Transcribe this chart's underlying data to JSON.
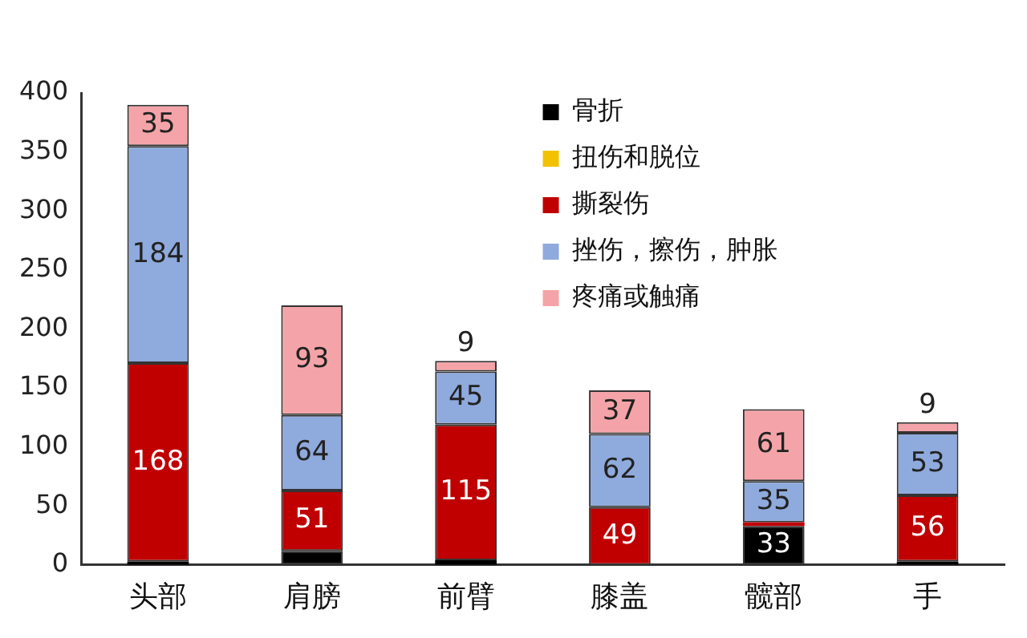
{
  "chart_data": {
    "type": "bar",
    "stacked": true,
    "categories": [
      "头部",
      "肩膀",
      "前臂",
      "膝盖",
      "髋部",
      "手"
    ],
    "series": [
      {
        "name": "骨折",
        "color": "#000000",
        "values": [
          3,
          12,
          4,
          null,
          33,
          3
        ],
        "value_labels": [
          null,
          null,
          null,
          null,
          "33",
          null
        ]
      },
      {
        "name": "扭伤和脱位",
        "color": "#f2c200",
        "values": [
          0,
          0,
          0,
          0,
          0,
          0
        ],
        "value_labels": [
          null,
          null,
          null,
          null,
          null,
          null
        ]
      },
      {
        "name": "撕裂伤",
        "color": "#c00000",
        "values": [
          168,
          51,
          115,
          49,
          3,
          56
        ],
        "value_labels": [
          "168",
          "51",
          "115",
          "49",
          null,
          "56"
        ]
      },
      {
        "name": "挫伤，擦伤，肿胀",
        "color": "#8faadc",
        "values": [
          184,
          64,
          45,
          62,
          35,
          53
        ],
        "value_labels": [
          "184",
          "64",
          "45",
          "62",
          "35",
          "53"
        ]
      },
      {
        "name": "疼痛或触痛",
        "color": "#f4a4a8",
        "values": [
          35,
          93,
          9,
          37,
          61,
          9
        ],
        "value_labels": [
          "35",
          "93",
          "9",
          "37",
          "61",
          "9"
        ]
      }
    ],
    "ylim": [
      0,
      400
    ],
    "yticks": [
      0,
      50,
      100,
      150,
      200,
      250,
      300,
      350,
      400
    ],
    "grid": false,
    "legend": "top right"
  }
}
